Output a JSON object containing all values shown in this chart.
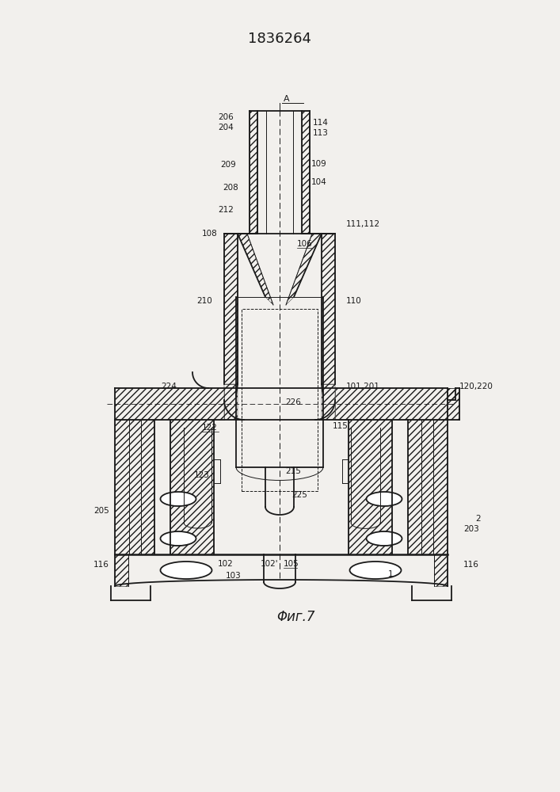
{
  "title": "1836264",
  "fig_label": "Φиг.7",
  "bg_color": "#f2f0ed",
  "line_color": "#1a1a1a",
  "lw_main": 1.3,
  "lw_thin": 0.7,
  "lw_thick": 1.8
}
